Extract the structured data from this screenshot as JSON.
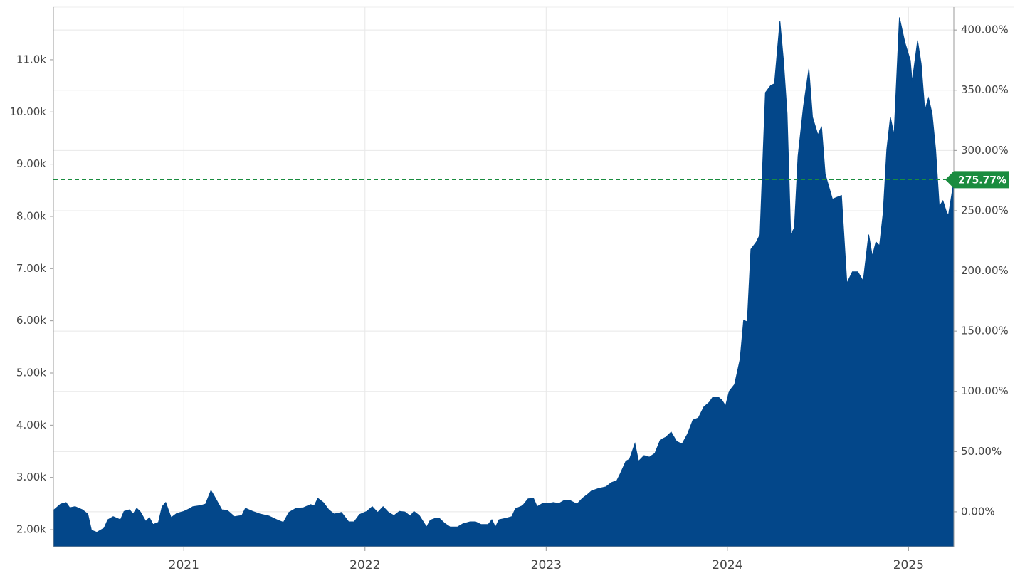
{
  "chart_data": {
    "type": "area",
    "color": "#03478a",
    "grid": true,
    "x": [
      2020.28,
      2020.32,
      2020.35,
      2020.37,
      2020.4,
      2020.44,
      2020.47,
      2020.49,
      2020.52,
      2020.56,
      2020.58,
      2020.61,
      2020.65,
      2020.67,
      2020.7,
      2020.72,
      2020.74,
      2020.76,
      2020.79,
      2020.81,
      2020.83,
      2020.86,
      2020.88,
      2020.9,
      2020.93,
      2020.96,
      2021.0,
      2021.03,
      2021.05,
      2021.09,
      2021.12,
      2021.15,
      2021.17,
      2021.21,
      2021.24,
      2021.28,
      2021.3,
      2021.32,
      2021.34,
      2021.38,
      2021.42,
      2021.47,
      2021.52,
      2021.55,
      2021.58,
      2021.62,
      2021.66,
      2021.7,
      2021.72,
      2021.74,
      2021.77,
      2021.8,
      2021.83,
      2021.87,
      2021.91,
      2021.94,
      2021.97,
      2022.01,
      2022.04,
      2022.07,
      2022.1,
      2022.13,
      2022.16,
      2022.19,
      2022.22,
      2022.25,
      2022.27,
      2022.3,
      2022.34,
      2022.36,
      2022.39,
      2022.41,
      2022.44,
      2022.47,
      2022.51,
      2022.54,
      2022.58,
      2022.61,
      2022.64,
      2022.68,
      2022.7,
      2022.72,
      2022.74,
      2022.78,
      2022.81,
      2022.83,
      2022.87,
      2022.9,
      2022.93,
      2022.95,
      2022.98,
      2023.01,
      2023.04,
      2023.07,
      2023.1,
      2023.13,
      2023.17,
      2023.2,
      2023.23,
      2023.25,
      2023.29,
      2023.33,
      2023.36,
      2023.39,
      2023.41,
      2023.44,
      2023.46,
      2023.49,
      2023.51,
      2023.54,
      2023.57,
      2023.6,
      2023.63,
      2023.66,
      2023.69,
      2023.72,
      2023.75,
      2023.78,
      2023.81,
      2023.84,
      2023.87,
      2023.9,
      2023.92,
      2023.95,
      2023.97,
      2023.99,
      2024.01,
      2024.04,
      2024.07,
      2024.09,
      2024.11,
      2024.13,
      2024.16,
      2024.18,
      2024.21,
      2024.24,
      2024.26,
      2024.29,
      2024.31,
      2024.33,
      2024.35,
      2024.37,
      2024.39,
      2024.42,
      2024.45,
      2024.47,
      2024.5,
      2024.52,
      2024.54,
      2024.58,
      2024.6,
      2024.63,
      2024.66,
      2024.69,
      2024.72,
      2024.75,
      2024.78,
      2024.8,
      2024.82,
      2024.84,
      2024.86,
      2024.88,
      2024.9,
      2024.92,
      2024.95,
      2024.98,
      2025.01,
      2025.02,
      2025.05,
      2025.07,
      2025.09,
      2025.11,
      2025.13,
      2025.15,
      2025.17,
      2025.19,
      2025.21,
      2025.22,
      2025.25
    ],
    "values": [
      2370,
      2490,
      2520,
      2420,
      2440,
      2380,
      2300,
      1990,
      1950,
      2030,
      2190,
      2250,
      2190,
      2350,
      2380,
      2300,
      2410,
      2340,
      2160,
      2230,
      2100,
      2140,
      2440,
      2520,
      2230,
      2310,
      2350,
      2400,
      2440,
      2460,
      2490,
      2750,
      2630,
      2380,
      2370,
      2250,
      2260,
      2270,
      2410,
      2350,
      2300,
      2260,
      2180,
      2140,
      2330,
      2410,
      2420,
      2480,
      2460,
      2600,
      2520,
      2380,
      2300,
      2330,
      2150,
      2150,
      2290,
      2350,
      2440,
      2330,
      2440,
      2330,
      2270,
      2350,
      2340,
      2260,
      2350,
      2270,
      2050,
      2180,
      2220,
      2220,
      2120,
      2050,
      2050,
      2110,
      2150,
      2150,
      2100,
      2100,
      2190,
      2050,
      2190,
      2220,
      2250,
      2400,
      2460,
      2590,
      2600,
      2440,
      2500,
      2500,
      2520,
      2500,
      2560,
      2560,
      2490,
      2600,
      2680,
      2740,
      2790,
      2820,
      2900,
      2940,
      3080,
      3310,
      3350,
      3650,
      3310,
      3420,
      3390,
      3460,
      3720,
      3770,
      3870,
      3690,
      3640,
      3830,
      4100,
      4140,
      4350,
      4440,
      4540,
      4540,
      4480,
      4370,
      4650,
      4780,
      5260,
      6010,
      5980,
      7370,
      7510,
      7650,
      10370,
      10510,
      10540,
      11740,
      10990,
      9970,
      7650,
      7780,
      9150,
      10100,
      10830,
      9900,
      9560,
      9720,
      8810,
      8330,
      8360,
      8400,
      6720,
      6940,
      6940,
      6760,
      7650,
      7240,
      7510,
      7440,
      8060,
      9280,
      9900,
      9560,
      11810,
      11330,
      10990,
      10580,
      11370,
      10920,
      10030,
      10270,
      9970,
      9280,
      8190,
      8300,
      8080,
      8020,
      8670
    ],
    "xlim": [
      2020.28,
      2025.25
    ],
    "xticks": [
      2021,
      2022,
      2023,
      2024,
      2025
    ],
    "ylim": [
      1673,
      12008
    ],
    "yticks": [
      {
        "value": 2000,
        "label": "2.00k"
      },
      {
        "value": 3000,
        "label": "3.00k"
      },
      {
        "value": 4000,
        "label": "4.00k"
      },
      {
        "value": 5000,
        "label": "5.00k"
      },
      {
        "value": 6000,
        "label": "6.00k"
      },
      {
        "value": 7000,
        "label": "7.00k"
      },
      {
        "value": 8000,
        "label": "8.00k"
      },
      {
        "value": 9000,
        "label": "9.00k"
      },
      {
        "value": 10000,
        "label": "10.00k"
      },
      {
        "value": 11000,
        "label": "11.0k"
      }
    ],
    "y2lim": [
      -29,
      419
    ],
    "y2ticks": [
      {
        "value": 0,
        "label": "0.00%"
      },
      {
        "value": 50,
        "label": "50.00%"
      },
      {
        "value": 100,
        "label": "100.00%"
      },
      {
        "value": 150,
        "label": "150.00%"
      },
      {
        "value": 200,
        "label": "200.00%"
      },
      {
        "value": 250,
        "label": "250.00%"
      },
      {
        "value": 300,
        "label": "300.00%"
      },
      {
        "value": 350,
        "label": "350.00%"
      },
      {
        "value": 400,
        "label": "400.00%"
      }
    ],
    "annotation": {
      "value": 275.77,
      "label": "275.77%",
      "color": "#1a8c3f",
      "axis": "y2"
    }
  }
}
